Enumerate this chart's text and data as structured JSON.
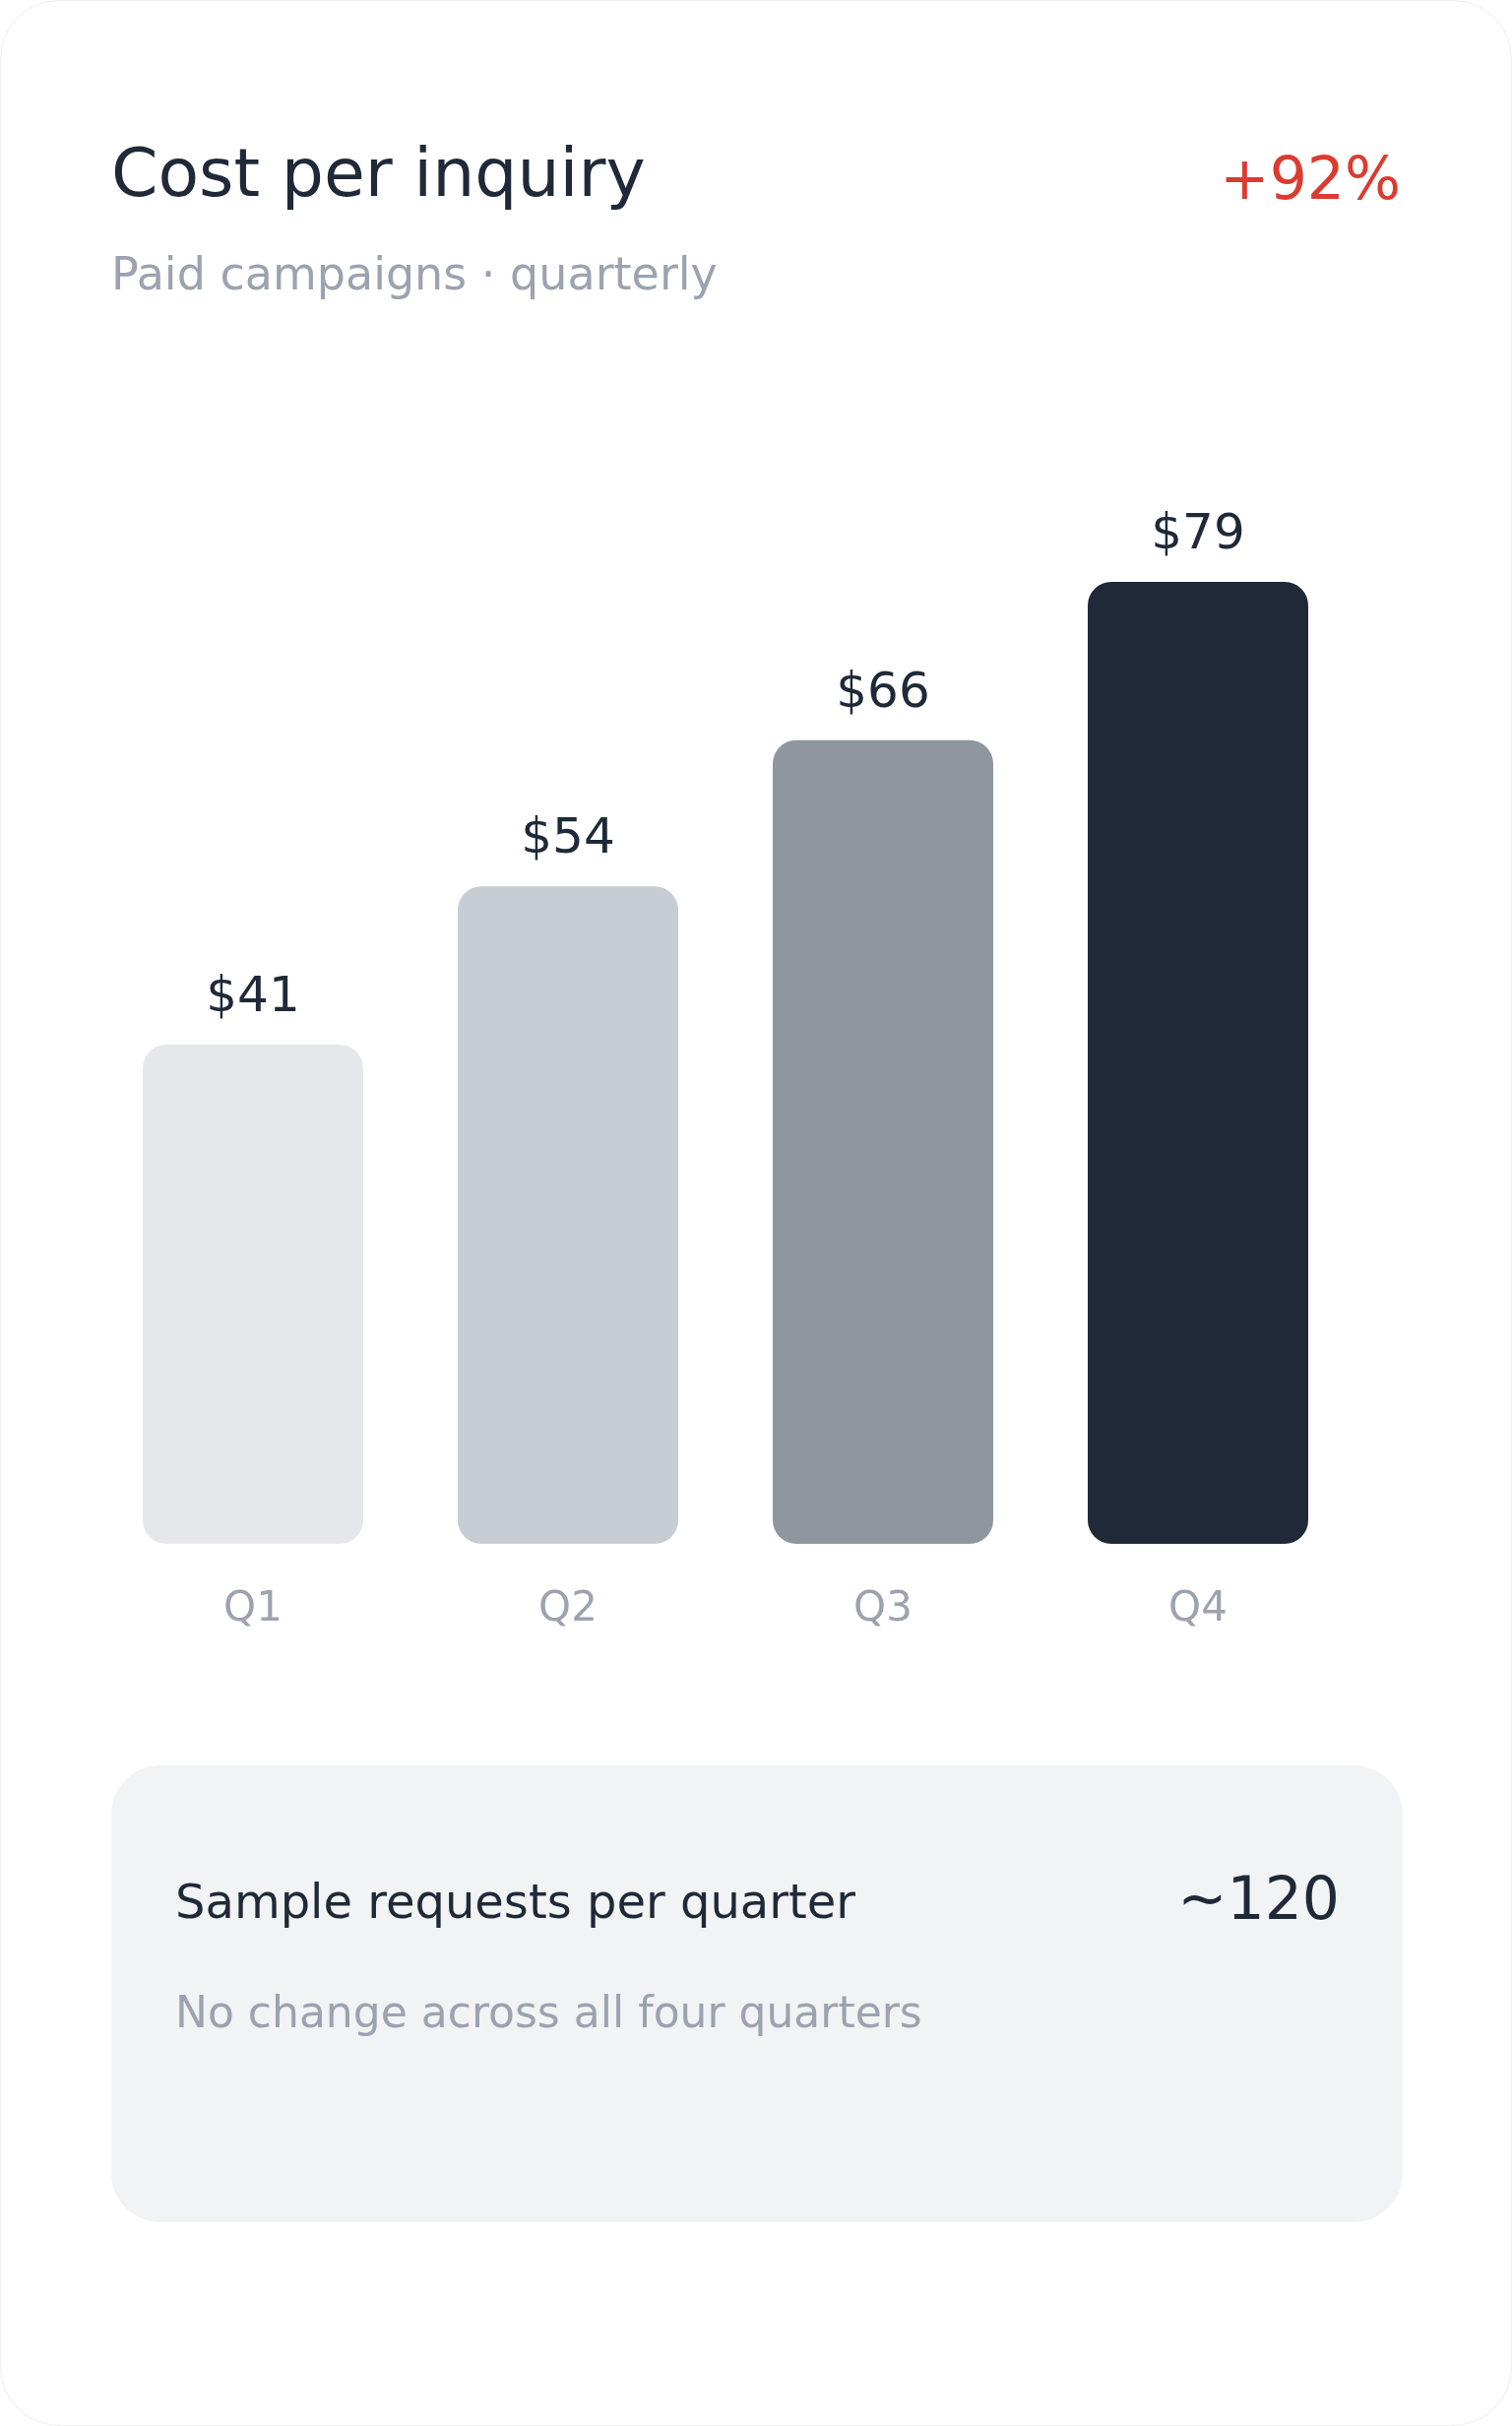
{
  "chart_data": {
    "type": "bar",
    "title": "Cost per inquiry",
    "subtitle": "Paid campaigns · quarterly",
    "categories": [
      "Q1",
      "Q2",
      "Q3",
      "Q4"
    ],
    "values": [
      41,
      54,
      66,
      79
    ],
    "value_labels": [
      "$41",
      "$54",
      "$66",
      "$79"
    ],
    "colors": [
      "#e5e7eb",
      "#c8ccd3",
      "#8f96a0",
      "#1f2937"
    ],
    "annotations": [
      "+92%",
      "Sample requests per quarter",
      "~120",
      "No change across all four quarters"
    ]
  }
}
